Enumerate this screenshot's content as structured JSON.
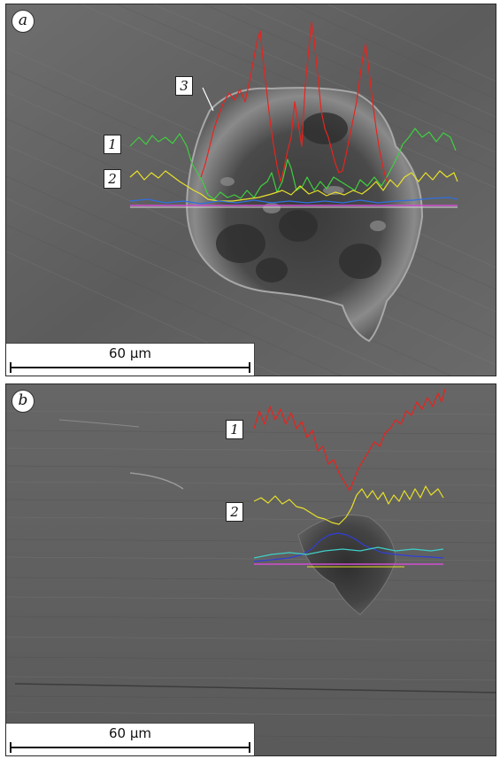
{
  "panels": [
    {
      "letter": "a",
      "curve_labels": [
        "1",
        "2",
        "3"
      ],
      "scale_bar": "60 μm",
      "line_colors": {
        "1": "#3fcf3f",
        "2": "#e8e02a",
        "3": "#e8231e",
        "baseline": "#d04fd0",
        "blue": "#2f6fe0"
      }
    },
    {
      "letter": "b",
      "curve_labels": [
        "1",
        "2"
      ],
      "scale_bar": "60 μm",
      "line_colors": {
        "1": "#e8231e",
        "2": "#e8e02a",
        "baseline": "#d04fd0",
        "blue": "#2f3fd8",
        "cyan": "#3fcfc8"
      }
    }
  ]
}
